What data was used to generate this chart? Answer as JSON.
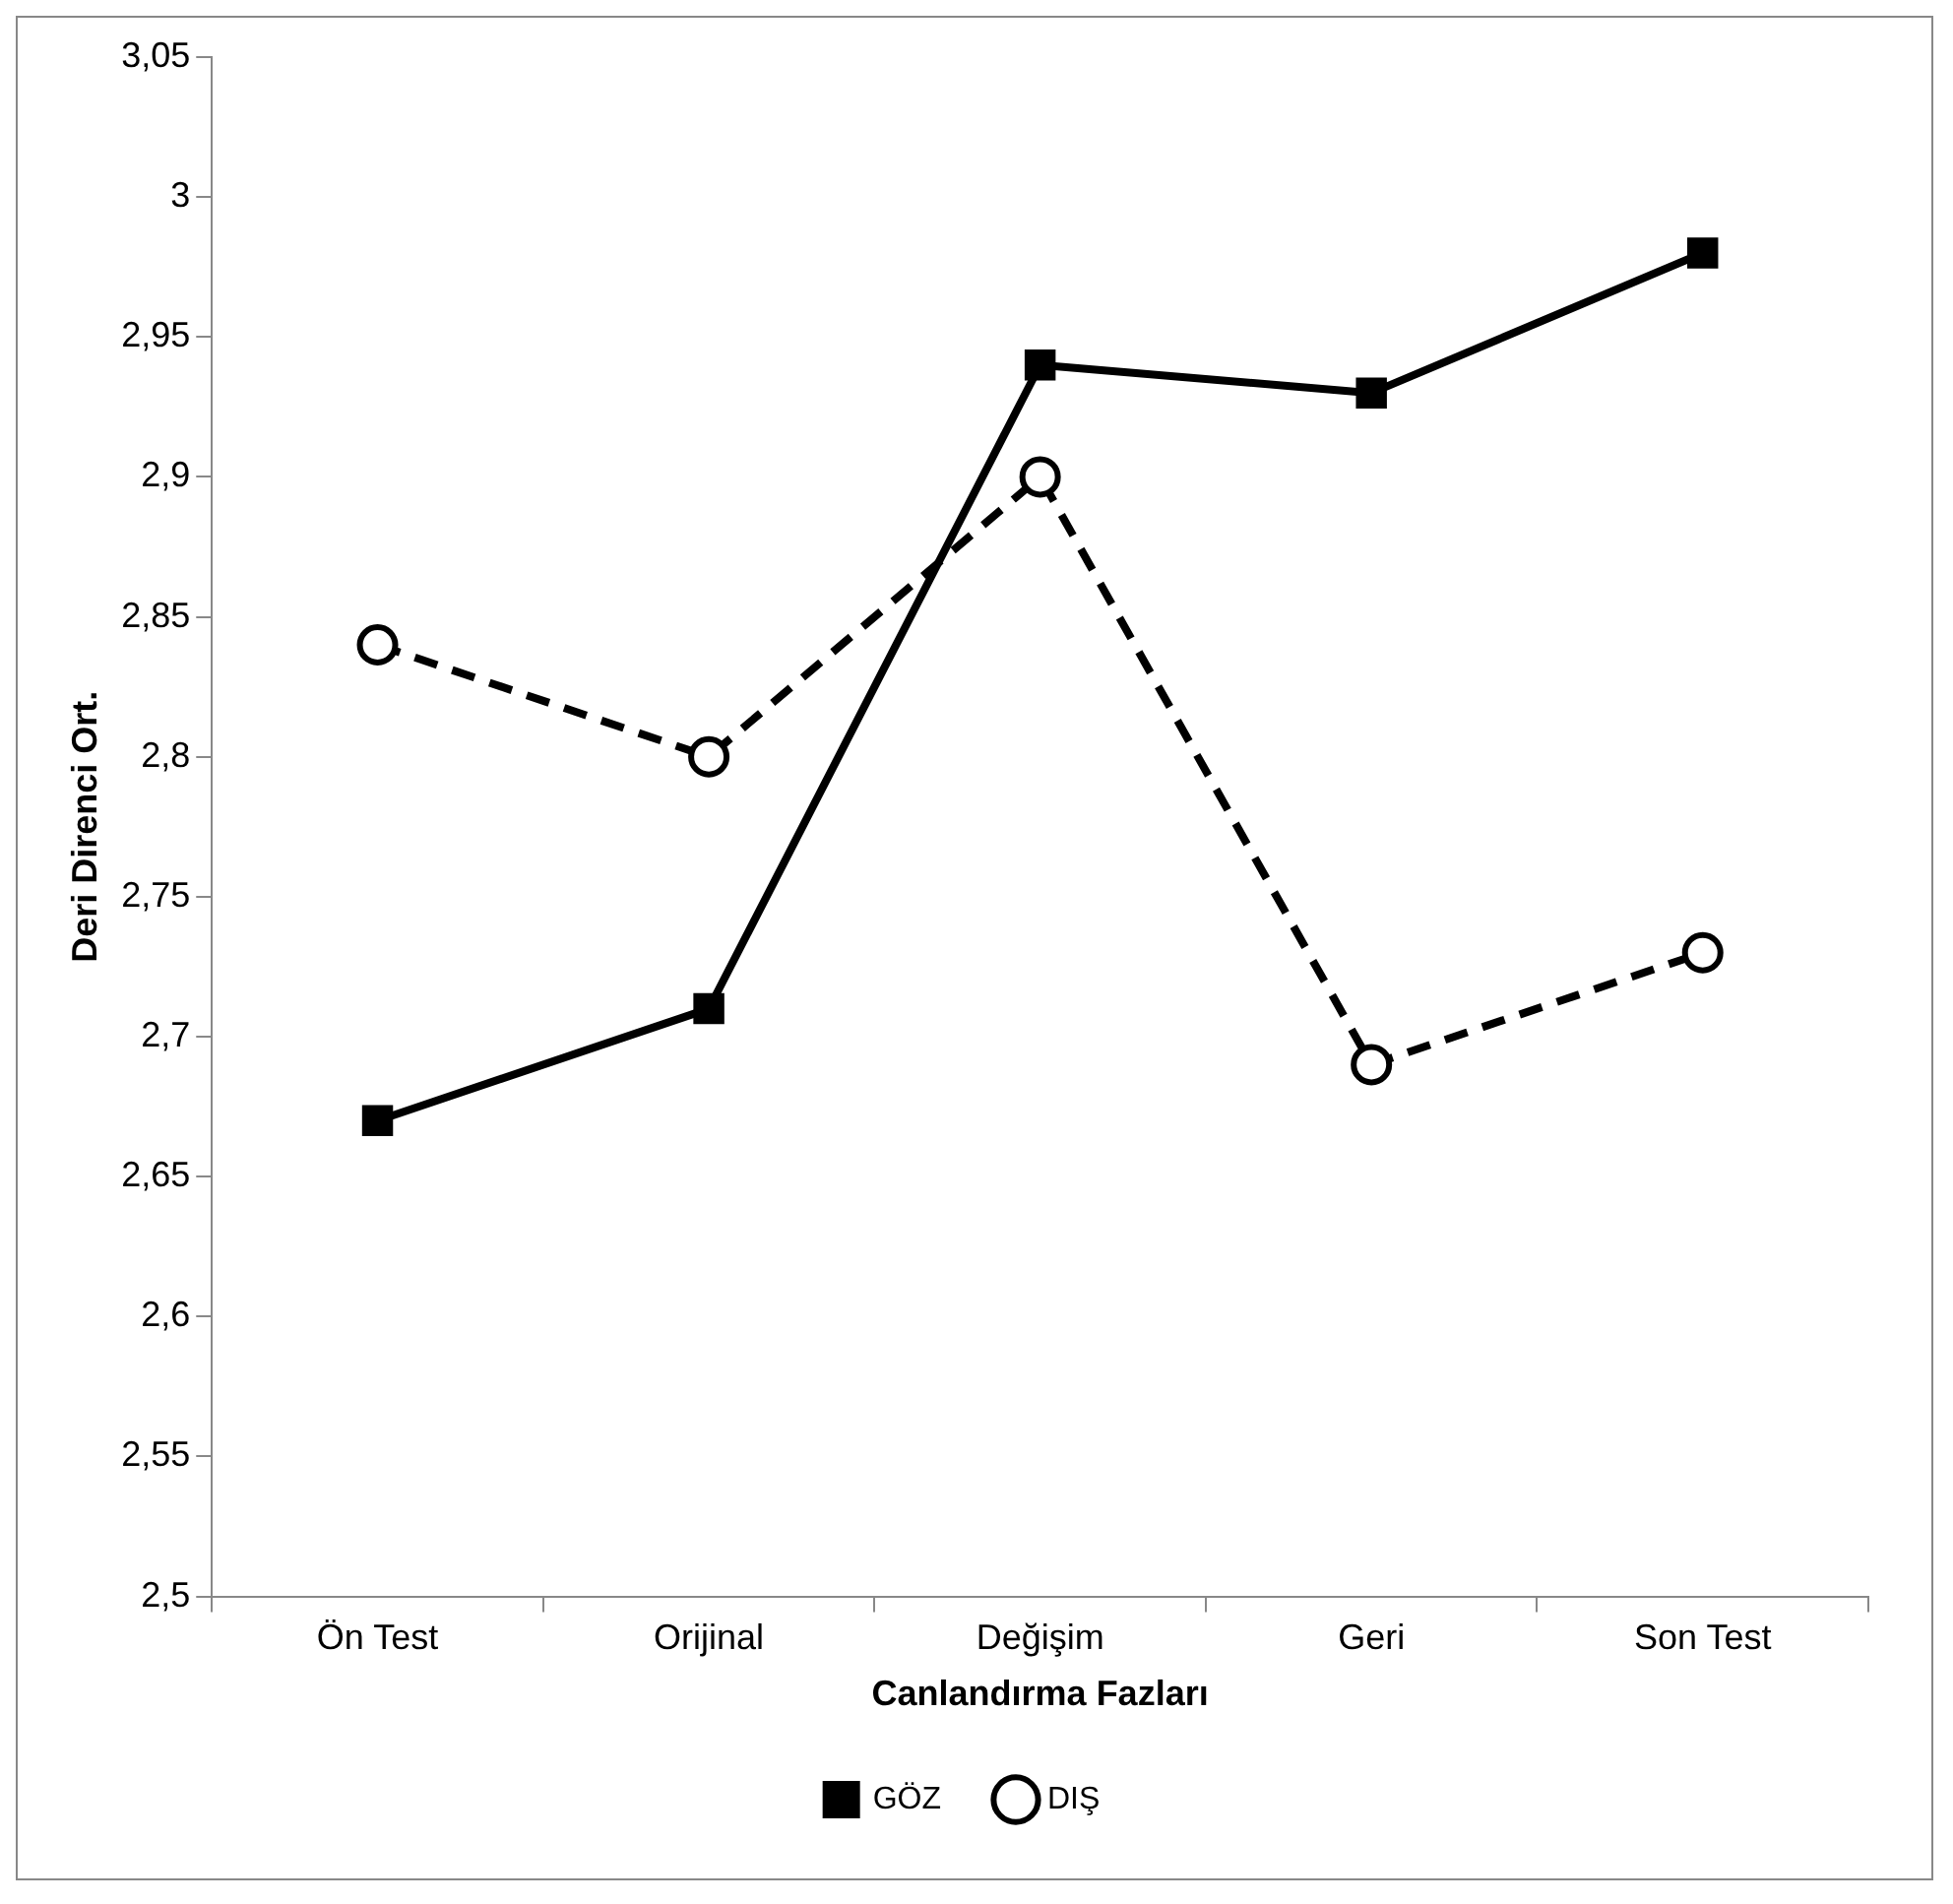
{
  "chart_data": {
    "type": "line",
    "xlabel": "Canlandırma Fazları",
    "ylabel": "Deri Direnci Ort.",
    "categories": [
      "Ön Test",
      "Orijinal",
      "Değişim",
      "Geri",
      "Son Test"
    ],
    "series": [
      {
        "name": "GÖZ",
        "color": "#000000",
        "values": [
          2.67,
          2.71,
          2.94,
          2.93,
          2.98
        ],
        "marker": "square",
        "line_style": "solid"
      },
      {
        "name": "DIŞ",
        "color": "#000000",
        "values": [
          2.84,
          2.8,
          2.9,
          2.69,
          2.73
        ],
        "marker": "circle",
        "line_style": "dashed"
      }
    ],
    "ylim": [
      2.5,
      3.05
    ],
    "yticks": [
      {
        "value": 2.5,
        "label": "2,5"
      },
      {
        "value": 2.55,
        "label": "2,55"
      },
      {
        "value": 2.6,
        "label": "2,6"
      },
      {
        "value": 2.65,
        "label": "2,65"
      },
      {
        "value": 2.7,
        "label": "2,7"
      },
      {
        "value": 2.75,
        "label": "2,75"
      },
      {
        "value": 2.8,
        "label": "2,8"
      },
      {
        "value": 2.85,
        "label": "2,85"
      },
      {
        "value": 2.9,
        "label": "2,9"
      },
      {
        "value": 2.95,
        "label": "2,95"
      },
      {
        "value": 3,
        "label": "3"
      },
      {
        "value": 3.05,
        "label": "3,05"
      }
    ],
    "grid": false,
    "legend": "bottom"
  }
}
